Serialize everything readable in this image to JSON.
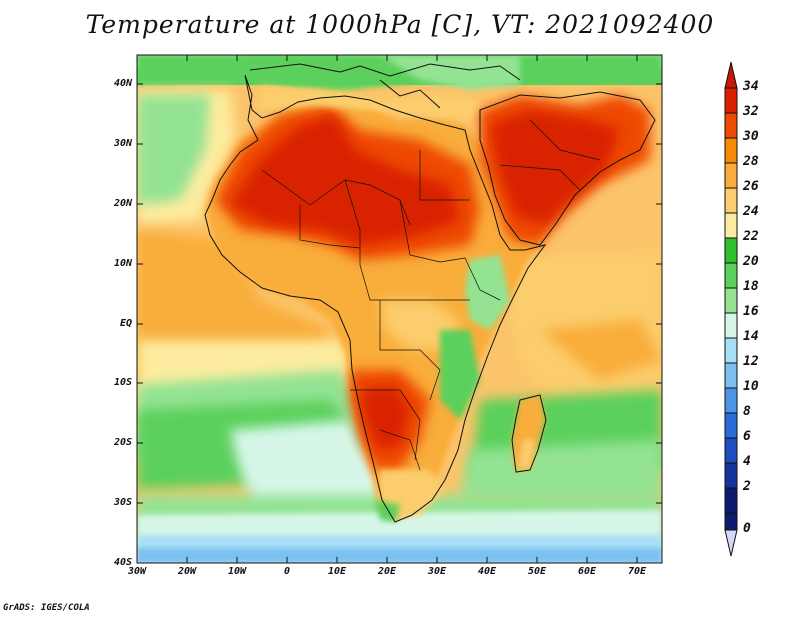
{
  "title": "Temperature at 1000hPa [C], VT: 2021092400",
  "credit": "GrADS: IGES/COLA",
  "map": {
    "region": "Africa and Arabian Peninsula",
    "lon_range": [
      -30,
      75
    ],
    "lat_range": [
      -40,
      45
    ],
    "lat_ticks": [
      "40N",
      "30N",
      "20N",
      "10N",
      "EQ",
      "10S",
      "20S",
      "30S",
      "40S"
    ],
    "lon_ticks": [
      "30W",
      "20W",
      "10W",
      "0",
      "10E",
      "20E",
      "30E",
      "40E",
      "50E",
      "60E",
      "70E"
    ]
  },
  "colorbar": {
    "labels": [
      "34",
      "32",
      "30",
      "28",
      "26",
      "24",
      "22",
      "20",
      "18",
      "16",
      "14",
      "12",
      "10",
      "8",
      "6",
      "4",
      "2",
      "0"
    ],
    "colors": [
      "#d92100",
      "#ee4a00",
      "#f78a00",
      "#f9ad3a",
      "#fbcd6c",
      "#fdec9f",
      "#2fbf2f",
      "#5cd05c",
      "#93e393",
      "#d6f7e8",
      "#a8def6",
      "#7cc0f0",
      "#4c95e6",
      "#2a6cd8",
      "#1c4ec0",
      "#13349b",
      "#0b1c6e"
    ],
    "top_arrow_color": "#c81800",
    "bottom_arrow_color": "#d7d7f7"
  }
}
